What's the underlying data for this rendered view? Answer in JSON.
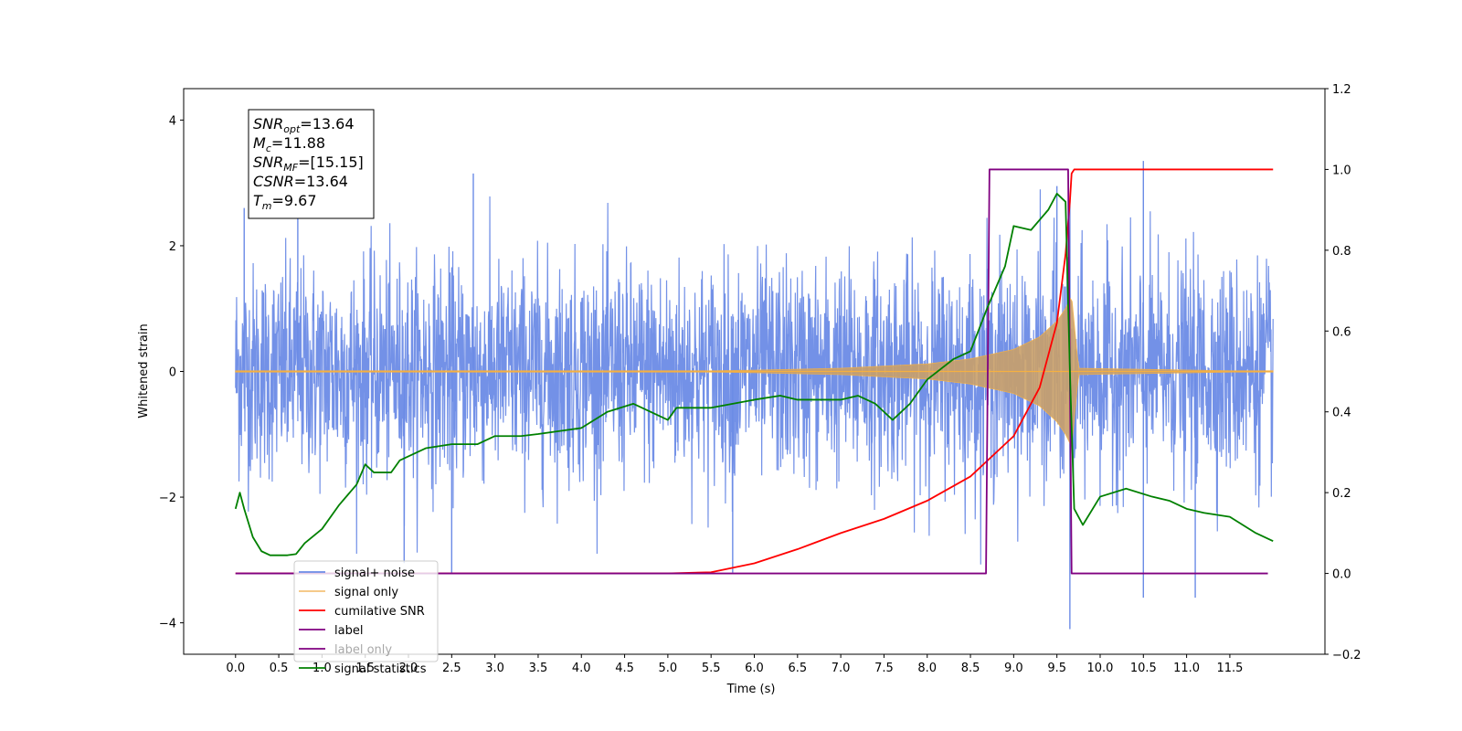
{
  "chart_data": {
    "type": "line",
    "xlabel": "Time (s)",
    "ylabel": "Whitened strain",
    "xlim": [
      -0.6,
      12.6
    ],
    "ylim": [
      -4.5,
      4.5
    ],
    "y2lim": [
      -0.2,
      1.2
    ],
    "x_ticks": [
      0.0,
      0.5,
      1.0,
      1.5,
      2.0,
      2.5,
      3.0,
      3.5,
      4.0,
      4.5,
      5.0,
      5.5,
      6.0,
      6.5,
      7.0,
      7.5,
      8.0,
      8.5,
      9.0,
      9.5,
      10.0,
      10.5,
      11.0,
      11.5
    ],
    "x_tick_labels": [
      "0.0",
      "0.5",
      "1.0",
      "1.5",
      "2.0",
      "2.5",
      "3.0",
      "3.5",
      "4.0",
      "4.5",
      "5.0",
      "5.5",
      "6.0",
      "6.5",
      "7.0",
      "7.5",
      "8.0",
      "8.5",
      "9.0",
      "9.5",
      "10.0",
      "10.5",
      "11.0",
      "11.5"
    ],
    "y_ticks": [
      4,
      2,
      0,
      -2,
      -4
    ],
    "y_tick_labels": [
      "4",
      "2",
      "0",
      "−2",
      "−4"
    ],
    "y2_ticks": [
      1.2,
      1.0,
      0.8,
      0.6,
      0.4,
      0.2,
      0.0,
      -0.2
    ],
    "y2_tick_labels": [
      "1.2",
      "1.0",
      "0.8",
      "0.6",
      "0.4",
      "0.2",
      "0.0",
      "−0.2"
    ],
    "grid": false,
    "legend_position": "bottom-left",
    "series": [
      {
        "name": "signal+ noise",
        "color": "#6b8be6",
        "axis": "left",
        "kind": "noise-band",
        "x_range": [
          0.0,
          12.0
        ],
        "typical_amplitude": 1.2,
        "peak_values": [
          {
            "x": 0.1,
            "y": 2.6
          },
          {
            "x": 0.72,
            "y": 2.9
          },
          {
            "x": 2.75,
            "y": 3.15
          },
          {
            "x": 9.5,
            "y": 2.95
          },
          {
            "x": 10.5,
            "y": 3.35
          },
          {
            "x": 1.95,
            "y": -3.05
          },
          {
            "x": 2.5,
            "y": -3.2
          },
          {
            "x": 5.75,
            "y": -3.2
          },
          {
            "x": 9.65,
            "y": -4.1
          },
          {
            "x": 10.5,
            "y": -3.6
          },
          {
            "x": 11.1,
            "y": -3.6
          }
        ]
      },
      {
        "name": "signal only",
        "color": "#f5b041",
        "axis": "left",
        "kind": "chirp",
        "t_merger": 9.67,
        "envelope": [
          {
            "x": 0.0,
            "y": 0.0
          },
          {
            "x": 5.0,
            "y": 0.0
          },
          {
            "x": 6.0,
            "y": 0.02
          },
          {
            "x": 7.0,
            "y": 0.05
          },
          {
            "x": 8.0,
            "y": 0.12
          },
          {
            "x": 8.5,
            "y": 0.2
          },
          {
            "x": 9.0,
            "y": 0.35
          },
          {
            "x": 9.3,
            "y": 0.55
          },
          {
            "x": 9.5,
            "y": 0.8
          },
          {
            "x": 9.6,
            "y": 1.0
          },
          {
            "x": 9.67,
            "y": 1.2
          },
          {
            "x": 9.75,
            "y": 0.05
          },
          {
            "x": 12.0,
            "y": 0.0
          }
        ]
      },
      {
        "name": "cumilative SNR",
        "color": "#ff0000",
        "axis": "right",
        "points": [
          {
            "x": 0.0,
            "y": 0.0
          },
          {
            "x": 5.0,
            "y": 0.0
          },
          {
            "x": 5.5,
            "y": 0.003
          },
          {
            "x": 6.0,
            "y": 0.025
          },
          {
            "x": 6.5,
            "y": 0.06
          },
          {
            "x": 7.0,
            "y": 0.1
          },
          {
            "x": 7.5,
            "y": 0.135
          },
          {
            "x": 8.0,
            "y": 0.18
          },
          {
            "x": 8.5,
            "y": 0.24
          },
          {
            "x": 9.0,
            "y": 0.34
          },
          {
            "x": 9.3,
            "y": 0.46
          },
          {
            "x": 9.5,
            "y": 0.62
          },
          {
            "x": 9.6,
            "y": 0.79
          },
          {
            "x": 9.65,
            "y": 0.92
          },
          {
            "x": 9.67,
            "y": 0.99
          },
          {
            "x": 9.7,
            "y": 1.0
          },
          {
            "x": 12.0,
            "y": 1.0
          }
        ]
      },
      {
        "name": "label",
        "color": "#800080",
        "axis": "right",
        "points": [
          {
            "x": 0.0,
            "y": 0.0
          },
          {
            "x": 8.68,
            "y": 0.0
          },
          {
            "x": 8.72,
            "y": 1.0
          },
          {
            "x": 9.63,
            "y": 1.0
          },
          {
            "x": 9.67,
            "y": 0.0
          },
          {
            "x": 11.94,
            "y": 0.0
          }
        ]
      },
      {
        "name": "label only",
        "color": "#800080",
        "axis": "right",
        "points": []
      },
      {
        "name": "signal statistics",
        "color": "#008000",
        "axis": "right",
        "points": [
          {
            "x": 0.0,
            "y": 0.16
          },
          {
            "x": 0.05,
            "y": 0.2
          },
          {
            "x": 0.1,
            "y": 0.16
          },
          {
            "x": 0.2,
            "y": 0.09
          },
          {
            "x": 0.3,
            "y": 0.055
          },
          {
            "x": 0.4,
            "y": 0.045
          },
          {
            "x": 0.6,
            "y": 0.045
          },
          {
            "x": 0.7,
            "y": 0.048
          },
          {
            "x": 0.8,
            "y": 0.075
          },
          {
            "x": 1.0,
            "y": 0.11
          },
          {
            "x": 1.2,
            "y": 0.17
          },
          {
            "x": 1.4,
            "y": 0.22
          },
          {
            "x": 1.5,
            "y": 0.27
          },
          {
            "x": 1.6,
            "y": 0.25
          },
          {
            "x": 1.8,
            "y": 0.25
          },
          {
            "x": 1.9,
            "y": 0.28
          },
          {
            "x": 2.2,
            "y": 0.31
          },
          {
            "x": 2.5,
            "y": 0.32
          },
          {
            "x": 2.8,
            "y": 0.32
          },
          {
            "x": 3.0,
            "y": 0.34
          },
          {
            "x": 3.3,
            "y": 0.34
          },
          {
            "x": 3.5,
            "y": 0.345
          },
          {
            "x": 4.0,
            "y": 0.36
          },
          {
            "x": 4.3,
            "y": 0.4
          },
          {
            "x": 4.6,
            "y": 0.42
          },
          {
            "x": 5.0,
            "y": 0.38
          },
          {
            "x": 5.1,
            "y": 0.41
          },
          {
            "x": 5.5,
            "y": 0.41
          },
          {
            "x": 6.0,
            "y": 0.43
          },
          {
            "x": 6.3,
            "y": 0.44
          },
          {
            "x": 6.5,
            "y": 0.43
          },
          {
            "x": 7.0,
            "y": 0.43
          },
          {
            "x": 7.2,
            "y": 0.44
          },
          {
            "x": 7.4,
            "y": 0.42
          },
          {
            "x": 7.6,
            "y": 0.38
          },
          {
            "x": 7.8,
            "y": 0.42
          },
          {
            "x": 8.0,
            "y": 0.48
          },
          {
            "x": 8.3,
            "y": 0.53
          },
          {
            "x": 8.5,
            "y": 0.55
          },
          {
            "x": 8.7,
            "y": 0.66
          },
          {
            "x": 8.9,
            "y": 0.76
          },
          {
            "x": 9.0,
            "y": 0.86
          },
          {
            "x": 9.2,
            "y": 0.85
          },
          {
            "x": 9.4,
            "y": 0.9
          },
          {
            "x": 9.5,
            "y": 0.94
          },
          {
            "x": 9.6,
            "y": 0.92
          },
          {
            "x": 9.65,
            "y": 0.5
          },
          {
            "x": 9.7,
            "y": 0.16
          },
          {
            "x": 9.8,
            "y": 0.12
          },
          {
            "x": 10.0,
            "y": 0.19
          },
          {
            "x": 10.3,
            "y": 0.21
          },
          {
            "x": 10.6,
            "y": 0.19
          },
          {
            "x": 10.8,
            "y": 0.18
          },
          {
            "x": 11.0,
            "y": 0.16
          },
          {
            "x": 11.2,
            "y": 0.15
          },
          {
            "x": 11.5,
            "y": 0.14
          },
          {
            "x": 11.8,
            "y": 0.1
          },
          {
            "x": 12.0,
            "y": 0.08
          }
        ]
      }
    ],
    "annotation": {
      "lines": [
        {
          "base": "SNR",
          "sub": "opt",
          "rest": "=13.64"
        },
        {
          "base": "M",
          "sub": "c",
          "rest": "=11.88"
        },
        {
          "base": "SNR",
          "sub": "MF",
          "rest": "=[15.15]"
        },
        {
          "base": "CSNR",
          "sub": "",
          "rest": "=13.64"
        },
        {
          "base": "T",
          "sub": "m",
          "rest": "=9.67"
        }
      ]
    }
  }
}
